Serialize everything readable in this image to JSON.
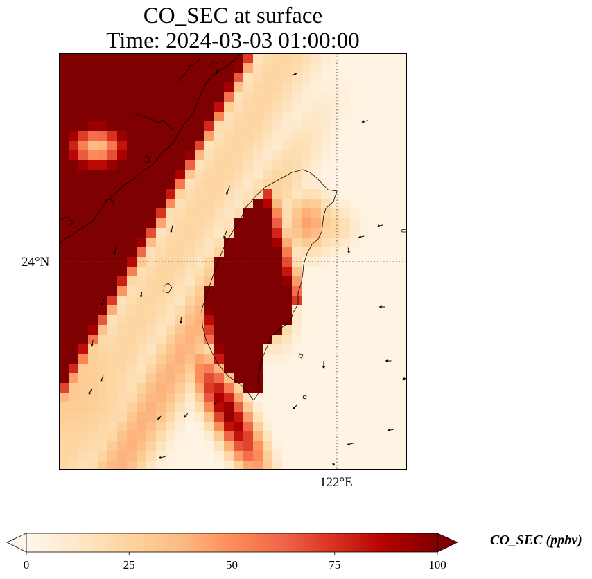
{
  "title": {
    "line1": "CO_SEC at surface",
    "line2": "Time: 2024-03-03 01:00:00"
  },
  "map": {
    "latitude_label": "24°N",
    "longitude_label": "122°E",
    "field": "CO_SEC",
    "features": [
      "heatmap-grid",
      "coastline",
      "wind-vectors",
      "gridlines"
    ]
  },
  "colorbar": {
    "label": "CO_SEC (ppbv)",
    "ticks": [
      "0",
      "25",
      "50",
      "75",
      "100"
    ],
    "min": 0,
    "max": 100,
    "extend": "both",
    "colormap": "OrRd",
    "colors": [
      "#fff7ec",
      "#fdd49e",
      "#fc8d59",
      "#d7301f",
      "#7f0000"
    ]
  }
}
